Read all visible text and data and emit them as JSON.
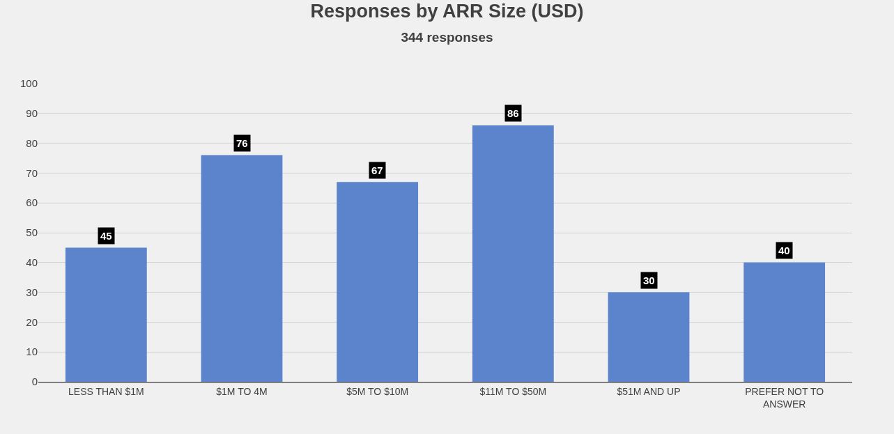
{
  "chart_data": {
    "type": "bar",
    "title": "Responses by ARR Size (USD)",
    "subtitle": "344 responses",
    "categories": [
      "LESS THAN $1M",
      "$1M TO 4M",
      "$5M TO $10M",
      "$11M TO $50M",
      "$51M AND UP",
      "PREFER NOT TO ANSWER"
    ],
    "values": [
      45,
      76,
      67,
      86,
      30,
      40
    ],
    "color": "#5b84cd",
    "ylim": [
      0,
      100
    ],
    "yticks": [
      0,
      10,
      20,
      30,
      40,
      50,
      60,
      70,
      80,
      90,
      100
    ],
    "grid": "y",
    "data_labels": true
  }
}
